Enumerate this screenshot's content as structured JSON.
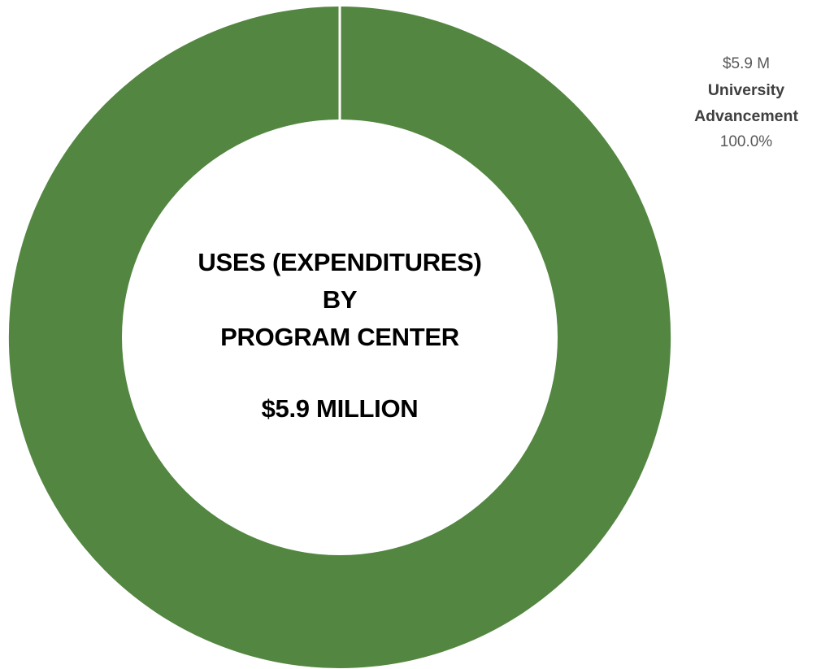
{
  "chart_data": {
    "type": "pie",
    "donut": true,
    "title_lines": [
      "USES (EXPENDITURES)",
      "BY",
      "PROGRAM CENTER"
    ],
    "total_label": "$5.9 MILLION",
    "slices": [
      {
        "name": "University Advancement",
        "name_lines": [
          "University",
          "Advancement"
        ],
        "value": 5.9,
        "value_label": "$5.9 M",
        "percent": 100.0,
        "percent_label": "100.0%",
        "color": "#538641"
      }
    ],
    "legend": "none"
  }
}
